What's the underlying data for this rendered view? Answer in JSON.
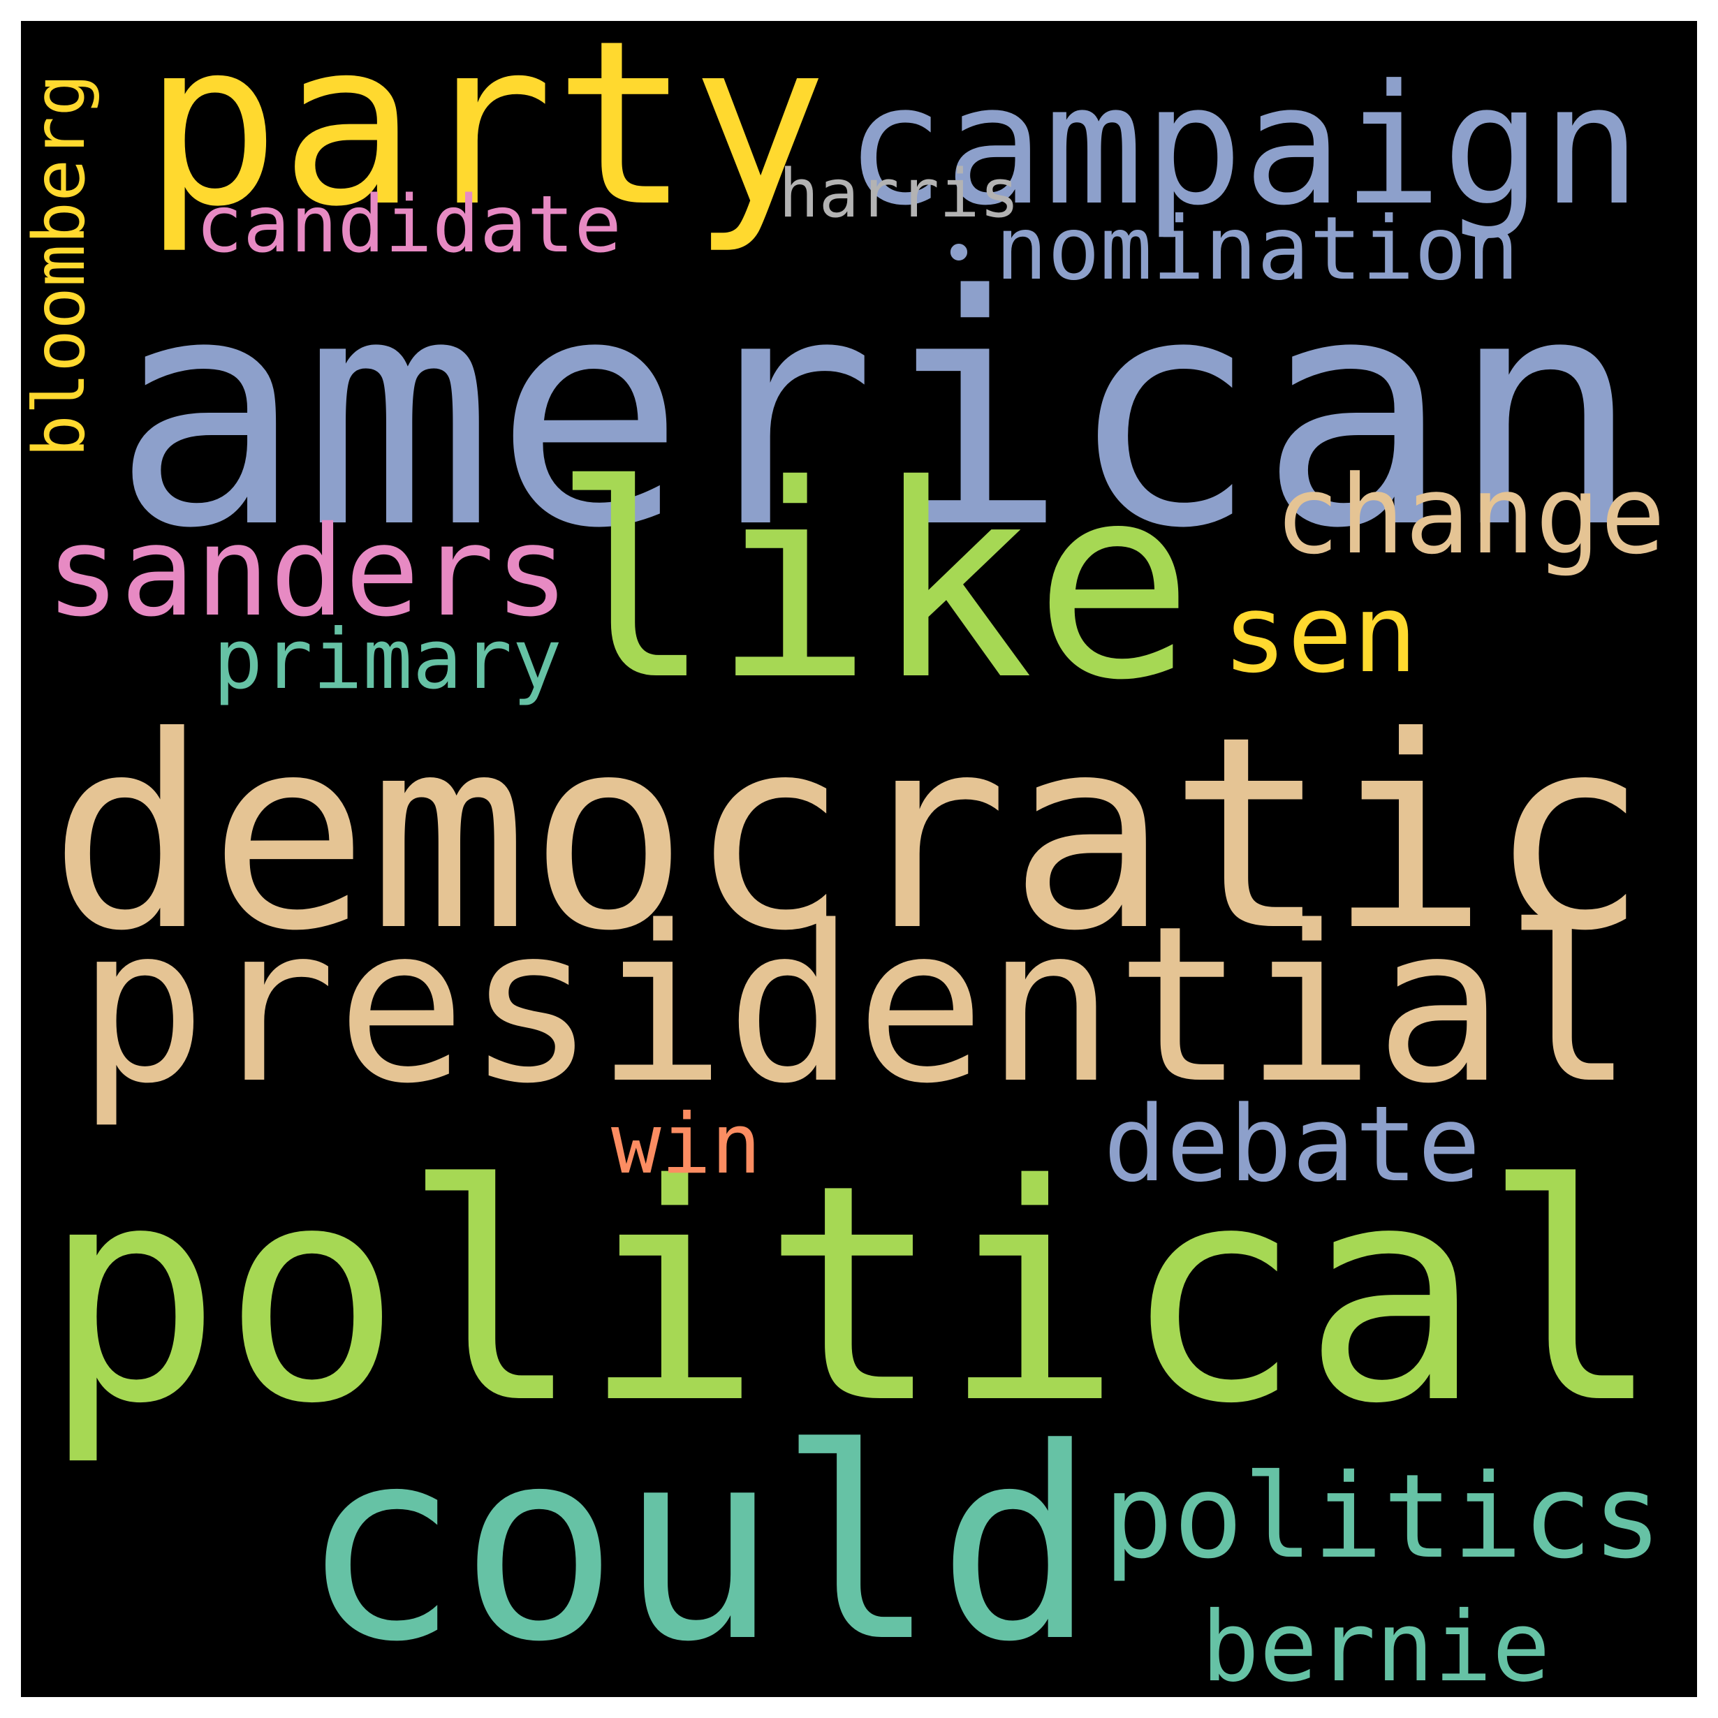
{
  "words": [
    {
      "id": "american",
      "text": "american",
      "color": "#8da0cb"
    },
    {
      "id": "democratic",
      "text": "democratic",
      "color": "#e5c494"
    },
    {
      "id": "political",
      "text": "political",
      "color": "#a6d854"
    },
    {
      "id": "presidential",
      "text": "presidential",
      "color": "#e5c494"
    },
    {
      "id": "like",
      "text": "like",
      "color": "#a6d854"
    },
    {
      "id": "party",
      "text": "party",
      "color": "#ffd92f"
    },
    {
      "id": "campaign",
      "text": "campaign",
      "color": "#8da0cb"
    },
    {
      "id": "could",
      "text": "could",
      "color": "#66c2a5"
    },
    {
      "id": "politics",
      "text": "politics",
      "color": "#66c2a5"
    },
    {
      "id": "sanders",
      "text": "sanders",
      "color": "#e78ac3"
    },
    {
      "id": "change",
      "text": "change",
      "color": "#e5c494"
    },
    {
      "id": "debate",
      "text": "debate",
      "color": "#8da0cb"
    },
    {
      "id": "bernie",
      "text": "bernie",
      "color": "#66c2a5"
    },
    {
      "id": "nomination",
      "text": "nomination",
      "color": "#8da0cb"
    },
    {
      "id": "candidate",
      "text": "candidate",
      "color": "#e78ac3"
    },
    {
      "id": "sen",
      "text": "sen",
      "color": "#ffd92f"
    },
    {
      "id": "primary",
      "text": "primary",
      "color": "#66c2a5"
    },
    {
      "id": "harris",
      "text": "harris",
      "color": "#b3b3b3"
    },
    {
      "id": "win",
      "text": "win",
      "color": "#fc8d62"
    },
    {
      "id": "bloomberg",
      "text": "bloomberg",
      "color": "#ffd92f"
    },
    {
      "id": "dot",
      "text": "•",
      "color": "#8da0cb"
    }
  ]
}
